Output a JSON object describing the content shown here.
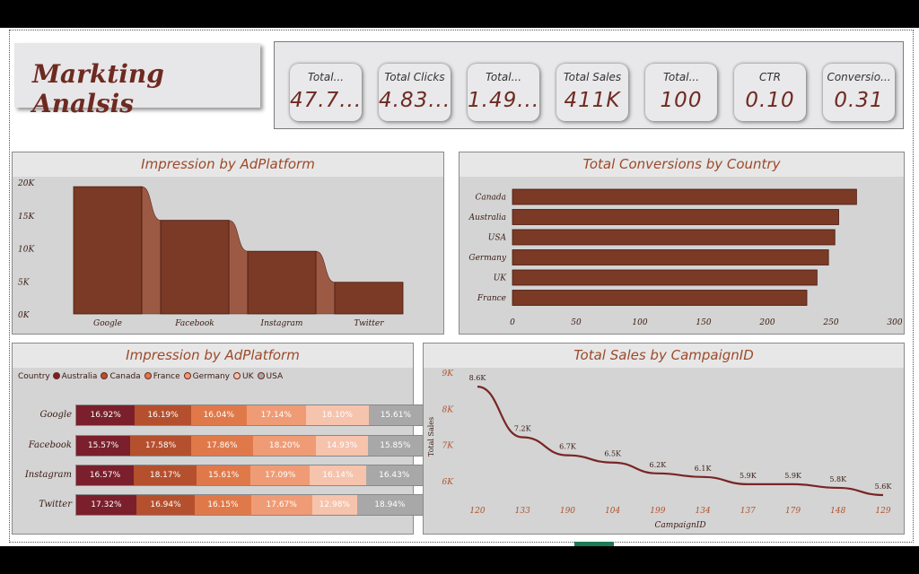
{
  "title": "Markting Analsis",
  "kpis": [
    {
      "label": "Total...",
      "value": "47.7..."
    },
    {
      "label": "Total Clicks",
      "value": "4.83..."
    },
    {
      "label": "Total...",
      "value": "1.49..."
    },
    {
      "label": "Total Sales",
      "value": "411K"
    },
    {
      "label": "Total...",
      "value": "100"
    },
    {
      "label": "CTR",
      "value": "0.10"
    },
    {
      "label": "Conversio...",
      "value": "0.31"
    }
  ],
  "chart_data": [
    {
      "type": "bar",
      "title": "Impression by AdPlatform",
      "categories": [
        "Google",
        "Facebook",
        "Instagram",
        "Twitter"
      ],
      "values": [
        19300,
        14200,
        9500,
        4800
      ],
      "y_ticks": [
        "0K",
        "5K",
        "10K",
        "15K",
        "20K"
      ],
      "ylim": [
        0,
        20000
      ],
      "color": "#7a3a25"
    },
    {
      "type": "bar",
      "orientation": "horizontal",
      "title": "Total Conversions by Country",
      "categories": [
        "Canada",
        "Australia",
        "USA",
        "Germany",
        "UK",
        "France"
      ],
      "values": [
        270,
        256,
        253,
        248,
        239,
        231
      ],
      "x_ticks": [
        "0",
        "50",
        "100",
        "150",
        "200",
        "250",
        "300"
      ],
      "xlim": [
        0,
        300
      ],
      "color": "#7a3a25"
    },
    {
      "type": "bar",
      "stacked": "100%",
      "title": "Impression by AdPlatform",
      "legend_title": "Country",
      "legend": [
        "Australia",
        "Canada",
        "France",
        "Germany",
        "UK",
        "USA"
      ],
      "colors": [
        "#7a1f2b",
        "#b5502e",
        "#e0794a",
        "#ef9c76",
        "#f6c3ad",
        "#a8a8a8"
      ],
      "categories": [
        "Google",
        "Facebook",
        "Instagram",
        "Twitter"
      ],
      "series": [
        {
          "name": "Australia",
          "values": [
            16.92,
            15.57,
            16.57,
            17.32
          ],
          "labels": [
            "16.92%",
            "15.57%",
            "16.57%",
            "17.32%"
          ]
        },
        {
          "name": "Canada",
          "values": [
            16.19,
            17.58,
            18.17,
            16.94
          ],
          "labels": [
            "16.19%",
            "17.58%",
            "18.17%",
            "16.94%"
          ]
        },
        {
          "name": "France",
          "values": [
            16.04,
            17.86,
            15.61,
            16.15
          ],
          "labels": [
            "16.04%",
            "17.86%",
            "15.61%",
            "16.15%"
          ]
        },
        {
          "name": "Germany",
          "values": [
            17.14,
            18.2,
            17.09,
            17.67
          ],
          "labels": [
            "17.14%",
            "18.20%",
            "17.09%",
            "17.67%"
          ]
        },
        {
          "name": "UK",
          "values": [
            18.1,
            14.93,
            16.14,
            12.98
          ],
          "labels": [
            "18.10%",
            "14.93%",
            "16.14%",
            "12.98%"
          ]
        },
        {
          "name": "USA",
          "values": [
            15.61,
            15.85,
            16.43,
            18.94
          ],
          "labels": [
            "15.61%",
            "15.85%",
            "16.43%",
            "18.94%"
          ]
        }
      ]
    },
    {
      "type": "line",
      "title": "Total Sales by CampaignID",
      "xlabel": "CampaignID",
      "ylabel": "Total Sales",
      "x": [
        "120",
        "133",
        "190",
        "104",
        "199",
        "134",
        "137",
        "179",
        "148",
        "129"
      ],
      "values": [
        8600,
        7200,
        6700,
        6500,
        6200,
        6100,
        5900,
        5900,
        5800,
        5600
      ],
      "labels": [
        "8.6K",
        "7.2K",
        "6.7K",
        "6.5K",
        "6.2K",
        "6.1K",
        "5.9K",
        "5.9K",
        "5.8K",
        "5.6K"
      ],
      "y_ticks": [
        "6K",
        "7K",
        "8K",
        "9K"
      ],
      "ylim": [
        5500,
        9000
      ],
      "color": "#7a2525"
    }
  ]
}
